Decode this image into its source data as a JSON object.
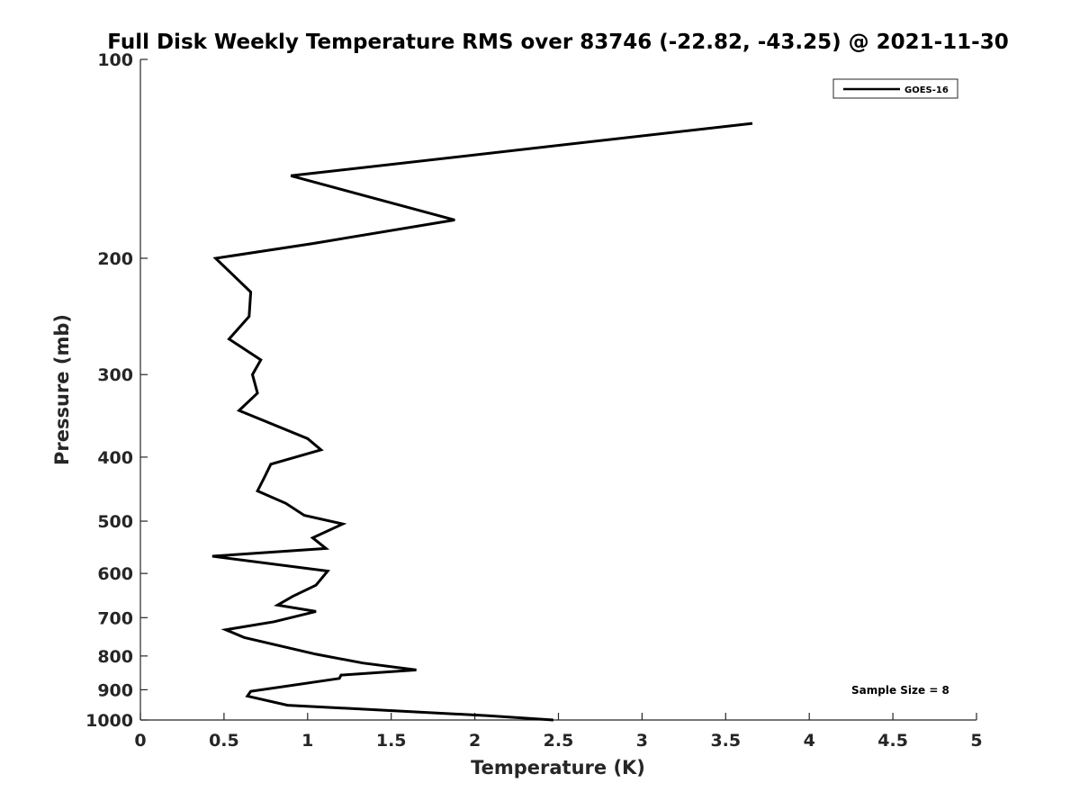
{
  "chart_data": {
    "type": "line",
    "title": "Full Disk Weekly Temperature RMS over 83746 (-22.82, -43.25) @ 2021-11-30",
    "xlabel": "Temperature (K)",
    "ylabel": "Pressure (mb)",
    "xlim": [
      0,
      5
    ],
    "ylim": [
      100,
      1000
    ],
    "yscale": "log",
    "y_reversed": true,
    "x_ticks": [
      "0",
      "0.5",
      "1",
      "1.5",
      "2",
      "2.5",
      "3",
      "3.5",
      "4",
      "4.5",
      "5"
    ],
    "y_ticks": [
      "100",
      "200",
      "300",
      "400",
      "500",
      "600",
      "700",
      "800",
      "900",
      "1000"
    ],
    "grid": false,
    "legend_position": "top-right",
    "annotation": "Sample Size = 8",
    "line_color": "#000000",
    "series": [
      {
        "name": "GOES-16",
        "points": [
          [
            3.66,
            125
          ],
          [
            0.9,
            150
          ],
          [
            1.88,
            175
          ],
          [
            1.03,
            190
          ],
          [
            0.45,
            200
          ],
          [
            0.66,
            225
          ],
          [
            0.65,
            245
          ],
          [
            0.53,
            265
          ],
          [
            0.72,
            285
          ],
          [
            0.67,
            300
          ],
          [
            0.7,
            320
          ],
          [
            0.59,
            340
          ],
          [
            1.0,
            375
          ],
          [
            1.08,
            390
          ],
          [
            0.78,
            410
          ],
          [
            0.74,
            430
          ],
          [
            0.7,
            450
          ],
          [
            0.87,
            470
          ],
          [
            0.98,
            490
          ],
          [
            1.21,
            505
          ],
          [
            1.03,
            530
          ],
          [
            1.11,
            550
          ],
          [
            0.43,
            565
          ],
          [
            1.12,
            595
          ],
          [
            1.05,
            625
          ],
          [
            0.91,
            650
          ],
          [
            0.82,
            670
          ],
          [
            1.05,
            685
          ],
          [
            0.8,
            710
          ],
          [
            0.51,
            730
          ],
          [
            0.62,
            750
          ],
          [
            1.05,
            795
          ],
          [
            1.33,
            820
          ],
          [
            1.65,
            840
          ],
          [
            1.2,
            855
          ],
          [
            1.19,
            865
          ],
          [
            0.66,
            905
          ],
          [
            0.64,
            920
          ],
          [
            0.88,
            950
          ],
          [
            2.08,
            985
          ],
          [
            2.47,
            1000
          ]
        ]
      }
    ]
  }
}
